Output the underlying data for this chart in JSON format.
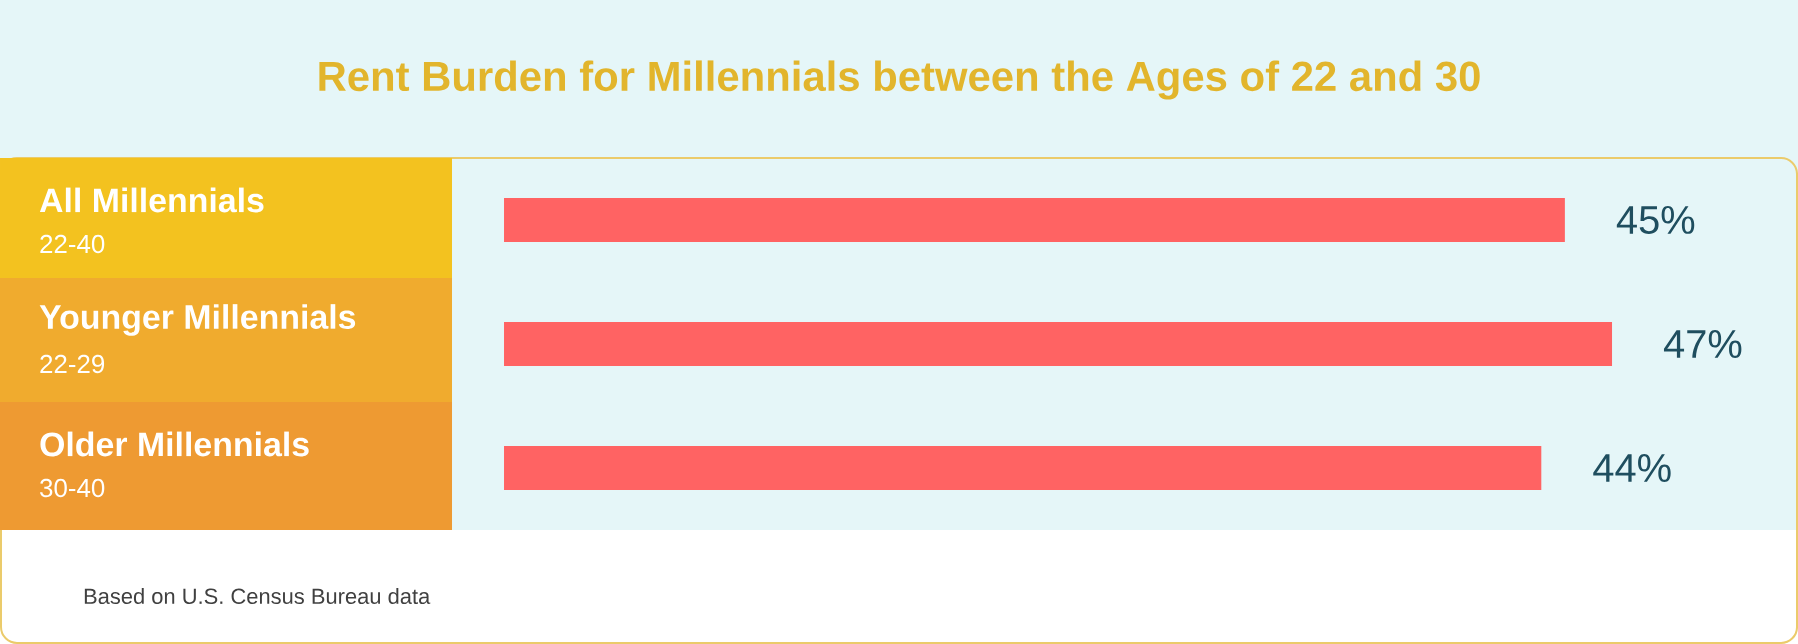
{
  "chart_data": {
    "type": "bar",
    "orientation": "horizontal",
    "title": "Rent Burden for Millennials between the Ages of 22 and 30",
    "categories": [
      "All Millennials",
      "Younger Millennials",
      "Older Millennials"
    ],
    "values": [
      45,
      47,
      44
    ],
    "value_labels": [
      "45%",
      "47%",
      "44%"
    ],
    "color": "#ff6363",
    "annotations": [
      "22-40",
      "22-29",
      "30-40",
      "Based on U.S. Census Bureau data"
    ]
  }
}
